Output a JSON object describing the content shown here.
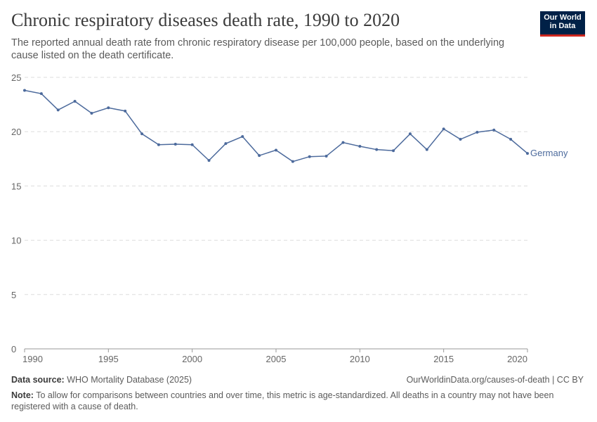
{
  "header": {
    "title": "Chronic respiratory diseases death rate, 1990 to 2020",
    "subtitle": "The reported annual death rate from chronic respiratory disease per 100,000 people, based on the underlying cause listed on the death certificate.",
    "logo": "Our World in Data"
  },
  "footer": {
    "source_label": "Data source:",
    "source": "WHO Mortality Database (2025)",
    "url": "OurWorldinData.org/causes-of-death | CC BY",
    "note_label": "Note:",
    "note": "To allow for comparisons between countries and over time, this metric is age-standardized. All deaths in a country may not have been registered with a cause of death."
  },
  "chart_data": {
    "type": "line",
    "ylim": [
      0,
      25
    ],
    "xlim": [
      1990,
      2020
    ],
    "yticks": [
      0,
      5,
      10,
      15,
      20,
      25
    ],
    "xticks": [
      1990,
      1995,
      2000,
      2005,
      2010,
      2015,
      2020
    ],
    "grid": "horizontal dashed",
    "series": [
      {
        "name": "Germany",
        "color": "#4c6a9c",
        "x": [
          1990,
          1991,
          1992,
          1993,
          1994,
          1995,
          1996,
          1997,
          1998,
          1999,
          2000,
          2001,
          2002,
          2003,
          2004,
          2005,
          2006,
          2007,
          2008,
          2009,
          2010,
          2011,
          2012,
          2013,
          2014,
          2015,
          2016,
          2017,
          2018,
          2019,
          2020
        ],
        "y": [
          23.8,
          23.5,
          22.0,
          22.8,
          21.7,
          22.2,
          21.9,
          19.8,
          18.8,
          18.85,
          18.8,
          17.35,
          18.9,
          19.55,
          17.8,
          18.3,
          17.25,
          17.7,
          17.75,
          19.0,
          18.65,
          18.35,
          18.25,
          19.8,
          18.35,
          20.25,
          19.3,
          19.95,
          20.15,
          19.3,
          18.0
        ]
      }
    ]
  }
}
